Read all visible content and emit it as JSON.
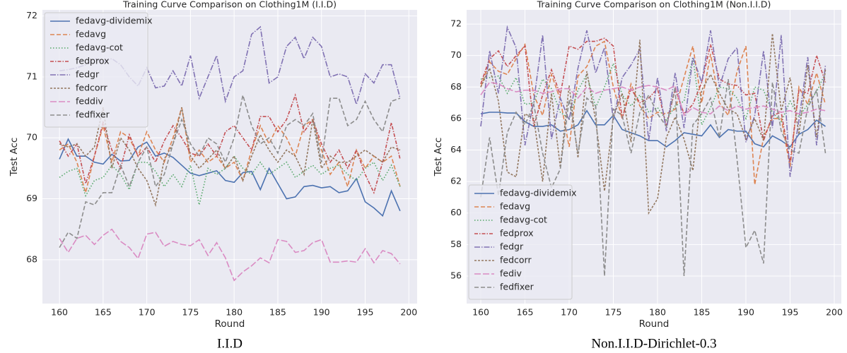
{
  "chart_data": [
    {
      "type": "line",
      "title": "Training Curve Comparison on Clothing1M (I.I.D)",
      "xlabel": "Round",
      "ylabel": "Test Acc",
      "caption": "I.I.D",
      "x": [
        160,
        161,
        162,
        163,
        164,
        165,
        166,
        167,
        168,
        169,
        170,
        171,
        172,
        173,
        174,
        175,
        176,
        177,
        178,
        179,
        180,
        181,
        182,
        183,
        184,
        185,
        186,
        187,
        188,
        189,
        190,
        191,
        192,
        193,
        194,
        195,
        196,
        197,
        198,
        199
      ],
      "xlim": [
        158.05,
        200.95
      ],
      "ylim": [
        67.28,
        72.1
      ],
      "xticks": [
        160,
        165,
        170,
        175,
        180,
        185,
        190,
        195,
        200
      ],
      "yticks": [
        68,
        69,
        70,
        71,
        72
      ],
      "grid": true,
      "legend": "upper left",
      "series": [
        {
          "name": "fedavg-dividemix",
          "color": "#4c72b0",
          "linestyle": "solid",
          "values": [
            69.65,
            69.98,
            69.7,
            69.7,
            69.6,
            69.57,
            69.73,
            69.62,
            69.63,
            69.85,
            69.93,
            69.7,
            69.75,
            69.68,
            69.55,
            69.42,
            69.38,
            69.42,
            69.46,
            69.3,
            69.27,
            69.43,
            69.45,
            69.15,
            69.5,
            69.25,
            69.0,
            69.03,
            69.2,
            69.22,
            69.18,
            69.2,
            69.1,
            69.13,
            69.33,
            68.95,
            68.85,
            68.72,
            69.13,
            68.8
          ]
        },
        {
          "name": "fedavg",
          "color": "#dd8452",
          "linestyle": "dashed",
          "values": [
            69.8,
            69.9,
            69.6,
            69.1,
            69.7,
            70.2,
            69.6,
            70.1,
            70.0,
            69.7,
            70.1,
            69.8,
            69.6,
            70.0,
            70.5,
            69.6,
            69.8,
            69.6,
            69.7,
            69.5,
            69.6,
            69.3,
            69.8,
            70.2,
            69.9,
            70.2,
            70.0,
            69.7,
            70.2,
            70.3,
            69.8,
            69.4,
            69.6,
            69.2,
            69.8,
            69.5,
            69.7,
            69.6,
            69.7,
            69.2
          ]
        },
        {
          "name": "fedavg-cot",
          "color": "#55a868",
          "linestyle": "dotted",
          "values": [
            69.35,
            69.45,
            69.5,
            69.05,
            69.3,
            69.35,
            69.55,
            69.4,
            69.15,
            69.6,
            69.6,
            69.45,
            69.2,
            69.4,
            69.2,
            69.55,
            68.9,
            69.5,
            69.4,
            69.5,
            69.7,
            69.5,
            69.4,
            69.6,
            69.4,
            69.5,
            69.6,
            69.35,
            69.45,
            69.55,
            69.4,
            69.5,
            69.55,
            69.4,
            69.3,
            69.5,
            69.6,
            69.3,
            69.55,
            69.2
          ]
        },
        {
          "name": "fedprox",
          "color": "#c44e52",
          "linestyle": "dashdot",
          "values": [
            69.95,
            69.7,
            69.9,
            69.25,
            69.7,
            70.25,
            69.8,
            69.5,
            70.05,
            69.7,
            69.85,
            69.6,
            69.95,
            70.2,
            70.0,
            69.75,
            69.7,
            69.9,
            69.7,
            70.1,
            70.2,
            70.0,
            69.8,
            70.35,
            70.35,
            70.1,
            70.3,
            70.7,
            70.1,
            70.3,
            69.9,
            69.6,
            69.8,
            69.5,
            69.8,
            69.4,
            69.1,
            69.6,
            70.25,
            69.65
          ]
        },
        {
          "name": "fedgr",
          "color": "#8172b3",
          "linestyle": "longdashdot",
          "values": [
            71.1,
            71.12,
            71.15,
            71.2,
            71.3,
            71.25,
            71.3,
            71.2,
            71.0,
            70.85,
            71.15,
            70.82,
            70.85,
            71.1,
            70.85,
            71.35,
            70.65,
            71.0,
            71.35,
            70.6,
            71.0,
            71.1,
            71.7,
            71.82,
            70.9,
            71.0,
            71.5,
            71.65,
            71.3,
            71.65,
            71.5,
            71.0,
            71.05,
            71.0,
            70.55,
            71.05,
            70.9,
            71.2,
            71.2,
            70.65
          ]
        },
        {
          "name": "fedcorr",
          "color": "#937860",
          "linestyle": "densedash",
          "values": [
            69.9,
            69.85,
            69.9,
            69.7,
            69.85,
            70.5,
            69.5,
            70.0,
            69.8,
            69.5,
            69.3,
            68.9,
            69.65,
            69.9,
            70.5,
            69.7,
            69.5,
            69.65,
            69.8,
            69.5,
            69.7,
            69.3,
            69.7,
            70.05,
            69.8,
            69.6,
            69.8,
            69.7,
            69.4,
            70.3,
            69.5,
            69.7,
            69.6,
            69.6,
            69.7,
            69.8,
            69.7,
            69.6,
            69.85,
            69.8
          ]
        },
        {
          "name": "feddiv",
          "color": "#da8bc3",
          "linestyle": "longdash",
          "values": [
            68.35,
            68.12,
            68.35,
            68.4,
            68.25,
            68.4,
            68.5,
            68.3,
            68.2,
            68.02,
            68.42,
            68.45,
            68.22,
            68.3,
            68.25,
            68.23,
            68.33,
            68.07,
            68.28,
            68.03,
            67.66,
            67.8,
            67.9,
            68.03,
            67.95,
            68.33,
            68.3,
            68.12,
            68.15,
            68.28,
            68.33,
            67.96,
            67.96,
            67.98,
            67.96,
            68.18,
            67.95,
            68.15,
            68.1,
            67.93
          ]
        },
        {
          "name": "fedfixer",
          "color": "#8c8c8c",
          "linestyle": "dashed",
          "values": [
            68.2,
            68.45,
            68.35,
            68.95,
            68.9,
            69.1,
            69.1,
            69.55,
            69.2,
            69.6,
            69.85,
            69.2,
            69.4,
            69.9,
            70.3,
            69.9,
            69.7,
            70.0,
            69.9,
            69.6,
            70.0,
            70.7,
            70.2,
            69.9,
            70.0,
            69.75,
            70.2,
            70.3,
            70.2,
            70.4,
            69.6,
            70.65,
            70.65,
            70.2,
            70.3,
            70.6,
            70.3,
            70.1,
            70.6,
            70.65
          ]
        }
      ]
    },
    {
      "type": "line",
      "title": "Training Curve Comparison on Clothing1M (Non.I.I.D)",
      "xlabel": "Round",
      "ylabel": "Test Acc",
      "caption": "Non.I.I.D-Dirichlet-0.3",
      "x": [
        160,
        161,
        162,
        163,
        164,
        165,
        166,
        167,
        168,
        169,
        170,
        171,
        172,
        173,
        174,
        175,
        176,
        177,
        178,
        179,
        180,
        181,
        182,
        183,
        184,
        185,
        186,
        187,
        188,
        189,
        190,
        191,
        192,
        193,
        194,
        195,
        196,
        197,
        198,
        199
      ],
      "xlim": [
        158.4,
        200.8
      ],
      "ylim": [
        54.25,
        72.9
      ],
      "xticks": [
        160,
        165,
        170,
        175,
        180,
        185,
        190,
        195,
        200
      ],
      "yticks": [
        56,
        58,
        60,
        62,
        64,
        66,
        68,
        70,
        72
      ],
      "grid": true,
      "legend": "lower left",
      "series": [
        {
          "name": "fedavg-dividemix",
          "color": "#4c72b0",
          "linestyle": "solid",
          "values": [
            66.3,
            66.4,
            66.4,
            66.35,
            66.35,
            65.8,
            65.5,
            65.5,
            65.6,
            65.2,
            65.3,
            65.6,
            66.5,
            65.6,
            65.6,
            66.2,
            65.3,
            65.1,
            64.9,
            64.6,
            64.6,
            64.2,
            64.6,
            65.1,
            65.0,
            64.9,
            65.6,
            64.8,
            65.3,
            65.2,
            65.2,
            64.4,
            64.2,
            64.9,
            64.6,
            64.2,
            65.0,
            65.3,
            65.9,
            65.5
          ]
        },
        {
          "name": "fedavg",
          "color": "#dd8452",
          "linestyle": "dashed",
          "values": [
            68.0,
            69.6,
            69.0,
            68.8,
            69.8,
            70.7,
            67.5,
            66.2,
            68.8,
            67.2,
            64.2,
            68.7,
            69.3,
            70.6,
            70.9,
            68.0,
            66.0,
            68.2,
            66.8,
            66.0,
            66.4,
            66.3,
            66.6,
            68.6,
            70.6,
            67.0,
            70.1,
            67.0,
            66.2,
            69.0,
            70.6,
            61.8,
            64.8,
            66.0,
            66.0,
            62.9,
            68.0,
            66.9,
            68.9,
            66.9
          ]
        },
        {
          "name": "fedavg-cot",
          "color": "#55a868",
          "linestyle": "dotted",
          "values": [
            68.5,
            68.6,
            68.7,
            67.6,
            68.6,
            66.9,
            67.0,
            68.5,
            67.9,
            66.4,
            66.0,
            67.8,
            68.8,
            66.7,
            68.0,
            69.5,
            67.5,
            66.8,
            67.5,
            66.4,
            66.7,
            65.9,
            66.8,
            67.1,
            69.9,
            65.6,
            66.7,
            68.0,
            67.9,
            67.3,
            66.0,
            68.0,
            67.8,
            66.4,
            65.8,
            67.1,
            66.1,
            66.9,
            67.7,
            68.9
          ]
        },
        {
          "name": "fedprox",
          "color": "#c44e52",
          "linestyle": "dashdot",
          "values": [
            68.2,
            69.8,
            70.3,
            69.3,
            70.0,
            70.6,
            65.5,
            67.5,
            69.1,
            67.5,
            70.6,
            70.4,
            70.9,
            70.9,
            71.1,
            70.6,
            66.0,
            67.9,
            67.0,
            67.3,
            67.9,
            65.5,
            67.9,
            66.3,
            66.9,
            68.3,
            70.7,
            68.5,
            68.2,
            68.1,
            67.5,
            67.6,
            64.6,
            66.2,
            66.4,
            63.2,
            67.8,
            67.6,
            70.0,
            68.3
          ]
        },
        {
          "name": "fedgr",
          "color": "#8172b3",
          "linestyle": "longdashdot",
          "values": [
            65.5,
            70.3,
            67.6,
            71.8,
            70.5,
            64.3,
            67.1,
            71.3,
            64.7,
            67.3,
            65.9,
            69.2,
            71.6,
            68.9,
            70.5,
            65.9,
            68.6,
            69.4,
            70.4,
            64.6,
            68.6,
            65.2,
            68.9,
            65.4,
            69.9,
            68.3,
            71.6,
            68.0,
            69.8,
            70.5,
            64.5,
            66.2,
            70.3,
            65.4,
            71.3,
            62.3,
            65.9,
            69.9,
            64.3,
            69.4
          ]
        },
        {
          "name": "fedcorr",
          "color": "#937860",
          "linestyle": "densedash",
          "values": [
            68.0,
            69.2,
            67.1,
            62.6,
            62.3,
            66.3,
            66.0,
            62.0,
            67.6,
            62.9,
            68.1,
            63.5,
            69.0,
            65.9,
            61.4,
            66.1,
            67.6,
            64.5,
            71.0,
            60.0,
            60.9,
            64.8,
            66.1,
            64.7,
            62.7,
            67.8,
            68.8,
            67.6,
            66.6,
            66.3,
            64.7,
            66.0,
            64.6,
            71.4,
            66.5,
            68.6,
            65.0,
            69.4,
            64.8,
            69.1
          ]
        },
        {
          "name": "fediv",
          "color": "#da8bc3",
          "linestyle": "longdash",
          "values": [
            67.5,
            68.3,
            68.2,
            67.9,
            67.7,
            67.8,
            67.8,
            67.6,
            67.7,
            67.9,
            67.9,
            67.3,
            68.0,
            67.6,
            67.8,
            67.9,
            68.0,
            67.8,
            68.0,
            68.1,
            68.0,
            67.8,
            68.1,
            66.2,
            66.7,
            66.4,
            66.3,
            66.8,
            66.5,
            66.8,
            66.6,
            66.7,
            66.8,
            66.6,
            66.4,
            66.5,
            66.3,
            66.4,
            66.6,
            66.5
          ]
        },
        {
          "name": "fedfixer",
          "color": "#8c8c8c",
          "linestyle": "dashed",
          "values": [
            61.0,
            64.8,
            61.1,
            65.1,
            66.4,
            65.6,
            66.9,
            63.8,
            61.6,
            62.8,
            67.2,
            63.8,
            67.3,
            66.8,
            56.0,
            66.6,
            66.2,
            63.8,
            66.4,
            67.5,
            66.3,
            65.5,
            68.0,
            56.0,
            65.6,
            66.3,
            67.3,
            64.8,
            68.5,
            63.4,
            57.8,
            58.9,
            56.8,
            68.3,
            65.2,
            64.0,
            63.8,
            66.7,
            67.8,
            63.8
          ]
        }
      ]
    }
  ]
}
